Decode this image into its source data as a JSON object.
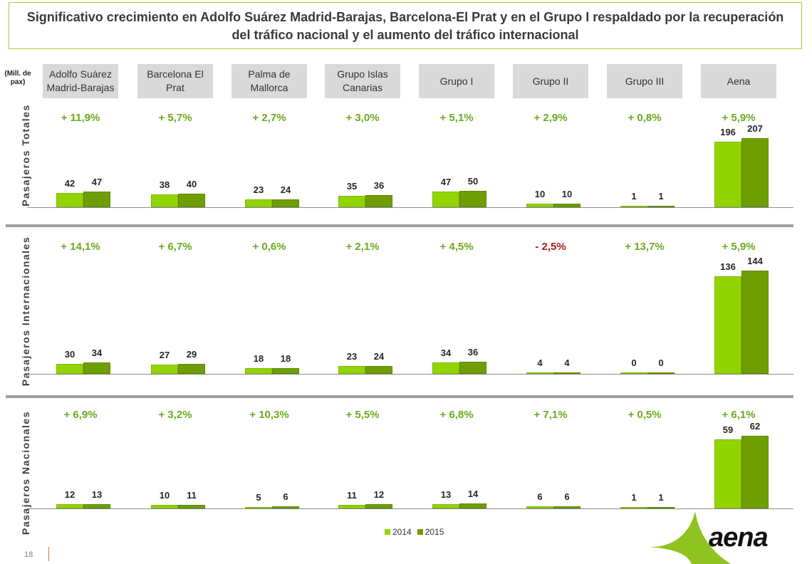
{
  "title": "Significativo crecimiento en Adolfo Suárez Madrid-Barajas, Barcelona-El Prat y en el Grupo I respaldado por la recuperación del tráfico nacional y el aumento del tráfico internacional",
  "unit_label": "(Mill. de pax)",
  "page_number": "18",
  "logo_text": "aena",
  "colors": {
    "2014": "#92d400",
    "2015": "#6e9e00",
    "positive": "#6aaa1e",
    "negative": "#b4191c"
  },
  "chart_data": {
    "type": "bar",
    "categories": [
      "Adolfo Suárez Madrid-Barajas",
      "Barcelona El Prat",
      "Palma de Mallorca",
      "Grupo Islas Canarias",
      "Grupo I",
      "Grupo II",
      "Grupo III",
      "Aena"
    ],
    "legend": [
      "2014",
      "2015"
    ],
    "legend_position": "bottom",
    "panels": [
      {
        "label": "Pasajeros Totales",
        "growth": [
          "+ 11,9%",
          "+ 5,7%",
          "+ 2,7%",
          "+ 3,0%",
          "+ 5,1%",
          "+ 2,9%",
          "+ 0,8%",
          "+ 5,9%"
        ],
        "series": [
          {
            "name": "2014",
            "values": [
              42,
              38,
              23,
              35,
              47,
              10,
              1,
              196
            ]
          },
          {
            "name": "2015",
            "values": [
              47,
              40,
              24,
              36,
              50,
              10,
              1,
              207
            ]
          }
        ]
      },
      {
        "label": "Pasajeros Internacionales",
        "growth": [
          "+ 14,1%",
          "+ 6,7%",
          "+ 0,6%",
          "+ 2,1%",
          "+ 4,5%",
          "- 2,5%",
          "+ 13,7%",
          "+ 5,9%"
        ],
        "series": [
          {
            "name": "2014",
            "values": [
              30,
              27,
              18,
              23,
              34,
              4,
              0,
              136
            ]
          },
          {
            "name": "2015",
            "values": [
              34,
              29,
              18,
              24,
              36,
              4,
              0,
              144
            ]
          }
        ]
      },
      {
        "label": "Pasajeros Nacionales",
        "growth": [
          "+ 6,9%",
          "+ 3,2%",
          "+ 10,3%",
          "+ 5,5%",
          "+ 6,8%",
          "+ 7,1%",
          "+ 0,5%",
          "+ 6,1%"
        ],
        "series": [
          {
            "name": "2014",
            "values": [
              12,
              10,
              5,
              11,
              13,
              6,
              1,
              59
            ]
          },
          {
            "name": "2015",
            "values": [
              13,
              11,
              6,
              12,
              14,
              6,
              1,
              62
            ]
          }
        ]
      }
    ]
  }
}
